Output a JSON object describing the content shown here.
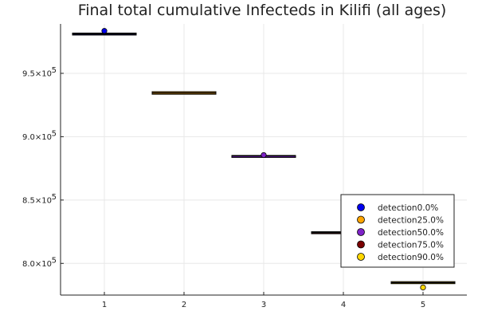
{
  "chart_data": {
    "type": "box",
    "title": "Final total cumulative Infecteds in Kilifi (all ages)",
    "xlabel": "",
    "ylabel": "",
    "categories": [
      "1",
      "2",
      "3",
      "4",
      "5"
    ],
    "xlim": [
      0.45,
      5.55
    ],
    "ylim": [
      775000,
      989000
    ],
    "y_ticks": [
      {
        "value": 800000,
        "mantissa": "8.0×10",
        "exp": "5"
      },
      {
        "value": 850000,
        "mantissa": "8.5×10",
        "exp": "5"
      },
      {
        "value": 900000,
        "mantissa": "9.0×10",
        "exp": "5"
      },
      {
        "value": 950000,
        "mantissa": "9.5×10",
        "exp": "5"
      }
    ],
    "grid": true,
    "legend_position": "bottom-right",
    "series": [
      {
        "name": "detection0.0%",
        "x": 1,
        "color": "#0000ee",
        "q1": 980500,
        "median": 981000,
        "q3": 981800,
        "outliers": [
          983500
        ]
      },
      {
        "name": "detection25.0%",
        "x": 2,
        "color": "#ffa500",
        "q1": 933500,
        "median": 934500,
        "q3": 935500,
        "outliers": []
      },
      {
        "name": "detection50.0%",
        "x": 3,
        "color": "#7e22c8",
        "q1": 884500,
        "median": 884800,
        "q3": 885200,
        "outliers": [
          885500
        ]
      },
      {
        "name": "detection75.0%",
        "x": 4,
        "color": "#7a0000",
        "q1": 823500,
        "median": 824300,
        "q3": 825000,
        "outliers": []
      },
      {
        "name": "detection90.0%",
        "x": 5,
        "color": "#ffd700",
        "q1": 784000,
        "median": 784800,
        "q3": 785600,
        "outliers": [
          781000
        ]
      }
    ]
  }
}
